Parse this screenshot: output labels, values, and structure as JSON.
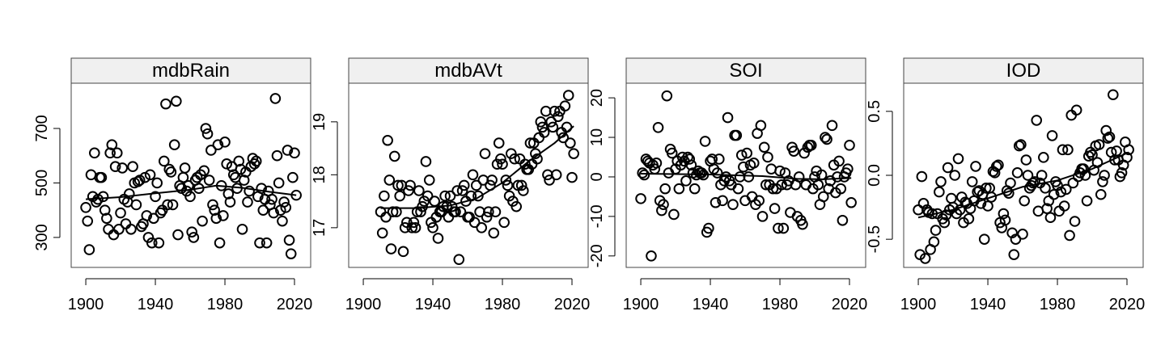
{
  "chart_data": [
    {
      "type": "scatter",
      "title": "mdbRain",
      "x": [
        1900,
        1901,
        1902,
        1903,
        1904,
        1905,
        1906,
        1907,
        1908,
        1909,
        1910,
        1911,
        1912,
        1913,
        1914,
        1915,
        1916,
        1917,
        1918,
        1919,
        1920,
        1921,
        1922,
        1923,
        1924,
        1925,
        1926,
        1927,
        1928,
        1929,
        1930,
        1931,
        1932,
        1933,
        1934,
        1935,
        1936,
        1937,
        1938,
        1939,
        1940,
        1941,
        1942,
        1943,
        1944,
        1945,
        1946,
        1947,
        1948,
        1949,
        1950,
        1951,
        1952,
        1953,
        1954,
        1955,
        1956,
        1957,
        1958,
        1959,
        1960,
        1961,
        1962,
        1963,
        1964,
        1965,
        1966,
        1967,
        1968,
        1969,
        1970,
        1971,
        1972,
        1973,
        1974,
        1975,
        1976,
        1977,
        1978,
        1979,
        1980,
        1981,
        1982,
        1983,
        1984,
        1985,
        1986,
        1987,
        1988,
        1989,
        1990,
        1991,
        1992,
        1993,
        1994,
        1995,
        1996,
        1997,
        1998,
        1999,
        2000,
        2001,
        2002,
        2003,
        2004,
        2005,
        2006,
        2007,
        2008,
        2009,
        2010,
        2011,
        2012,
        2013,
        2014,
        2015,
        2016,
        2017,
        2018,
        2019,
        2020,
        2021
      ],
      "values": [
        410,
        360,
        255,
        530,
        450,
        610,
        430,
        440,
        520,
        520,
        450,
        400,
        370,
        330,
        610,
        640,
        310,
        560,
        610,
        330,
        390,
        555,
        440,
        350,
        430,
        460,
        330,
        560,
        500,
        420,
        505,
        510,
        340,
        350,
        520,
        380,
        300,
        530,
        280,
        370,
        450,
        500,
        280,
        390,
        400,
        580,
        790,
        420,
        550,
        540,
        420,
        640,
        800,
        310,
        490,
        480,
        520,
        555,
        470,
        490,
        450,
        320,
        300,
        510,
        520,
        480,
        530,
        360,
        545,
        700,
        680,
        510,
        620,
        420,
        400,
        370,
        640,
        280,
        490,
        380,
        650,
        570,
        460,
        430,
        560,
        530,
        520,
        480,
        580,
        550,
        330,
        510,
        540,
        430,
        470,
        560,
        590,
        570,
        580,
        450,
        280,
        480,
        400,
        440,
        280,
        470,
        420,
        440,
        390,
        810,
        600,
        500,
        400,
        360,
        430,
        410,
        620,
        290,
        240,
        520,
        610,
        455
      ],
      "trend": {
        "x": [
          1900,
          1920,
          1940,
          1960,
          1975,
          1990,
          2005,
          2021
        ],
        "values": [
          440,
          448,
          462,
          475,
          490,
          482,
          468,
          455
        ]
      },
      "xlim": [
        1891.6,
        2029.3
      ],
      "xticks": [
        1900,
        1940,
        1980,
        2020
      ],
      "ylim": [
        190,
        866
      ],
      "yticks": [
        300,
        500,
        700
      ]
    },
    {
      "type": "scatter",
      "title": "mdbAVt",
      "x": [
        1910,
        1911,
        1912,
        1913,
        1914,
        1915,
        1916,
        1917,
        1918,
        1919,
        1920,
        1921,
        1922,
        1923,
        1924,
        1925,
        1926,
        1927,
        1928,
        1929,
        1930,
        1931,
        1932,
        1933,
        1934,
        1935,
        1936,
        1937,
        1938,
        1939,
        1940,
        1941,
        1942,
        1943,
        1944,
        1945,
        1946,
        1947,
        1948,
        1949,
        1950,
        1951,
        1952,
        1953,
        1954,
        1955,
        1956,
        1957,
        1958,
        1959,
        1960,
        1961,
        1962,
        1963,
        1964,
        1965,
        1966,
        1967,
        1968,
        1969,
        1970,
        1971,
        1972,
        1973,
        1974,
        1975,
        1976,
        1977,
        1978,
        1979,
        1980,
        1981,
        1982,
        1983,
        1984,
        1985,
        1986,
        1987,
        1988,
        1989,
        1990,
        1991,
        1992,
        1993,
        1994,
        1995,
        1996,
        1997,
        1998,
        1999,
        2000,
        2001,
        2002,
        2003,
        2004,
        2005,
        2006,
        2007,
        2008,
        2009,
        2010,
        2011,
        2012,
        2013,
        2014,
        2015,
        2016,
        2017,
        2018,
        2019,
        2020,
        2021
      ],
      "values": [
        17.3,
        16.9,
        17.6,
        17.2,
        18.65,
        17.9,
        16.6,
        17.3,
        18.35,
        17.3,
        17.8,
        17.6,
        17.8,
        16.55,
        17.0,
        17.1,
        17.7,
        17.8,
        17.0,
        17.1,
        17.0,
        17.3,
        17.7,
        17.3,
        17.4,
        17.5,
        18.25,
        17.6,
        17.9,
        17.1,
        17.0,
        17.5,
        17.2,
        16.8,
        17.3,
        17.3,
        17.4,
        17.6,
        17.4,
        17.2,
        17.6,
        17.4,
        17.3,
        17.3,
        17.7,
        16.4,
        17.3,
        17.7,
        17.8,
        17.5,
        17.2,
        17.2,
        17.6,
        18.0,
        17.1,
        17.8,
        17.6,
        17.3,
        17.0,
        17.9,
        18.4,
        17.2,
        17.3,
        17.8,
        17.9,
        16.9,
        17.3,
        18.2,
        18.6,
        18.3,
        18.2,
        17.1,
        17.9,
        17.8,
        17.6,
        18.4,
        17.5,
        18.3,
        17.4,
        17.8,
        18.3,
        17.8,
        17.7,
        18.2,
        18.1,
        18.1,
        18.6,
        18.2,
        18.6,
        18.4,
        18.3,
        18.7,
        19.0,
        18.9,
        18.8,
        19.2,
        18.0,
        17.9,
        19.0,
        18.9,
        19.2,
        18.0,
        19.1,
        19.2,
        18.8,
        18.7,
        19.3,
        18.9,
        19.5,
        18.6,
        17.95,
        18.4
      ],
      "trend": {
        "x": [
          1910,
          1930,
          1950,
          1965,
          1980,
          1995,
          2010,
          2021
        ],
        "values": [
          17.37,
          17.37,
          17.42,
          17.55,
          17.85,
          18.25,
          18.6,
          18.92
        ]
      },
      "xlim": [
        1891.6,
        2029.3
      ],
      "xticks": [
        1900,
        1940,
        1980,
        2020
      ],
      "ylim": [
        16.25,
        19.73
      ],
      "yticks": [
        17,
        18,
        19
      ]
    },
    {
      "type": "scatter",
      "title": "SOI",
      "x": [
        1900,
        1901,
        1902,
        1903,
        1904,
        1905,
        1906,
        1907,
        1908,
        1909,
        1910,
        1911,
        1912,
        1913,
        1914,
        1915,
        1916,
        1917,
        1918,
        1919,
        1920,
        1921,
        1922,
        1923,
        1924,
        1925,
        1926,
        1927,
        1928,
        1929,
        1930,
        1931,
        1932,
        1933,
        1934,
        1935,
        1936,
        1937,
        1938,
        1939,
        1940,
        1941,
        1942,
        1943,
        1944,
        1945,
        1946,
        1947,
        1948,
        1949,
        1950,
        1951,
        1952,
        1953,
        1954,
        1955,
        1956,
        1957,
        1958,
        1959,
        1960,
        1961,
        1962,
        1963,
        1964,
        1965,
        1966,
        1967,
        1968,
        1969,
        1970,
        1971,
        1972,
        1973,
        1974,
        1975,
        1976,
        1977,
        1978,
        1979,
        1980,
        1981,
        1982,
        1983,
        1984,
        1985,
        1986,
        1987,
        1988,
        1989,
        1990,
        1991,
        1992,
        1993,
        1994,
        1995,
        1996,
        1997,
        1998,
        1999,
        2000,
        2001,
        2002,
        2003,
        2004,
        2005,
        2006,
        2007,
        2008,
        2009,
        2010,
        2011,
        2012,
        2013,
        2014,
        2015,
        2016,
        2017,
        2018,
        2019,
        2020,
        2021
      ],
      "values": [
        -5.5,
        1,
        0.5,
        4.5,
        4,
        3.5,
        -20,
        3,
        2,
        3.5,
        12.5,
        -6,
        -8.5,
        -7,
        -3,
        20.5,
        1,
        7,
        6,
        -9.5,
        2,
        4,
        -3,
        3,
        5,
        4,
        -1,
        5,
        4.5,
        3,
        1,
        -3,
        0.5,
        1.5,
        1,
        1,
        0.5,
        9,
        -14,
        -13,
        4,
        4.5,
        2,
        -6.5,
        1,
        4.5,
        -2,
        -6,
        -1,
        0,
        15,
        -1,
        -2,
        -7,
        10.5,
        10.5,
        -3,
        0,
        5.5,
        2.5,
        -6,
        6,
        0,
        3,
        -5,
        3.5,
        -7,
        11,
        -6,
        13,
        -10,
        7.5,
        -2,
        5,
        -2,
        2,
        -3,
        -8,
        -3,
        -13,
        1.5,
        -2,
        -13,
        1,
        -2,
        -1,
        -9,
        7.5,
        6.5,
        -2,
        -10,
        0,
        -11,
        -12,
        6,
        -2,
        7.5,
        8,
        8,
        -3,
        0,
        1.5,
        -2,
        -7,
        0.5,
        -5,
        10,
        9.5,
        -3,
        -1,
        13,
        3,
        -4,
        0,
        4,
        -3,
        -11,
        0,
        1,
        2,
        8,
        -6.5
      ],
      "trend": {
        "x": [
          1900,
          1940,
          1970,
          1990,
          2005,
          2021
        ],
        "values": [
          0.8,
          0.6,
          0.2,
          -0.5,
          -0.6,
          -0.3
        ]
      },
      "xlim": [
        1891.6,
        2029.3
      ],
      "xticks": [
        1900,
        1940,
        1980,
        2020
      ],
      "ylim": [
        -22.9,
        23.7
      ],
      "yticks": [
        -20,
        -10,
        0,
        10,
        20
      ]
    },
    {
      "type": "scatter",
      "title": "IOD",
      "x": [
        1900,
        1901,
        1902,
        1903,
        1904,
        1905,
        1906,
        1907,
        1908,
        1909,
        1910,
        1911,
        1912,
        1913,
        1914,
        1915,
        1916,
        1917,
        1918,
        1919,
        1920,
        1921,
        1922,
        1923,
        1924,
        1925,
        1926,
        1927,
        1928,
        1929,
        1930,
        1931,
        1932,
        1933,
        1934,
        1935,
        1936,
        1937,
        1938,
        1939,
        1940,
        1941,
        1942,
        1943,
        1944,
        1945,
        1946,
        1947,
        1948,
        1949,
        1950,
        1951,
        1952,
        1953,
        1954,
        1955,
        1956,
        1957,
        1958,
        1959,
        1960,
        1961,
        1962,
        1963,
        1964,
        1965,
        1966,
        1967,
        1968,
        1969,
        1970,
        1971,
        1972,
        1973,
        1974,
        1975,
        1976,
        1977,
        1978,
        1979,
        1980,
        1981,
        1982,
        1983,
        1984,
        1985,
        1986,
        1987,
        1988,
        1989,
        1990,
        1991,
        1992,
        1993,
        1994,
        1995,
        1996,
        1997,
        1998,
        1999,
        2000,
        2001,
        2002,
        2003,
        2004,
        2005,
        2006,
        2007,
        2008,
        2009,
        2010,
        2011,
        2012,
        2013,
        2014,
        2015,
        2016,
        2017,
        2018,
        2019,
        2020,
        2021
      ],
      "values": [
        -0.27,
        -0.62,
        -0.01,
        -0.22,
        -0.65,
        -0.27,
        -0.29,
        -0.58,
        -0.3,
        -0.52,
        -0.43,
        -0.3,
        -0.13,
        -0.05,
        -0.34,
        -0.37,
        -0.31,
        0.06,
        -0.27,
        -0.18,
        -0.25,
        0.0,
        -0.3,
        0.13,
        -0.27,
        -0.17,
        -0.37,
        -0.21,
        -0.22,
        -0.34,
        -0.26,
        -0.05,
        -0.2,
        0.07,
        -0.13,
        -0.12,
        -0.22,
        -0.15,
        -0.5,
        -0.1,
        -0.24,
        -0.1,
        -0.17,
        0.03,
        0.02,
        0.07,
        0.08,
        -0.37,
        -0.41,
        -0.3,
        -0.35,
        -0.12,
        -0.14,
        -0.06,
        -0.45,
        -0.62,
        -0.5,
        0.02,
        0.23,
        0.24,
        -0.46,
        -0.2,
        0.12,
        0.0,
        -0.1,
        -0.08,
        -0.06,
        -0.05,
        0.43,
        -0.28,
        -0.06,
        0.0,
        0.14,
        -0.1,
        -0.26,
        -0.2,
        -0.33,
        0.31,
        -0.15,
        -0.05,
        -0.08,
        -0.28,
        -0.13,
        0.2,
        -0.24,
        -0.11,
        0.2,
        -0.47,
        0.47,
        -0.06,
        -0.36,
        0.51,
        -0.01,
        0.02,
        0.05,
        0.05,
        0.0,
        -0.2,
        0.15,
        0.18,
        0.16,
        0.04,
        0.23,
        0.1,
        0.24,
        -0.15,
        -0.05,
        0.0,
        0.35,
        0.29,
        0.3,
        0.18,
        0.63,
        0.12,
        0.19,
        0.12,
        -0.01,
        0.02,
        0.08,
        0.26,
        0.14,
        0.2
      ],
      "trend": {
        "x": [
          1900,
          1920,
          1940,
          1960,
          1980,
          2000,
          2021
        ],
        "values": [
          -0.33,
          -0.27,
          -0.18,
          -0.09,
          -0.04,
          0.05,
          0.18
        ]
      },
      "xlim": [
        1891.6,
        2029.3
      ],
      "xticks": [
        1900,
        1940,
        1980,
        2020
      ],
      "ylim": [
        -0.72,
        0.72
      ],
      "yticks": [
        -0.5,
        {
          "value": 0,
          "label": "0.0"
        },
        0.5
      ]
    }
  ]
}
